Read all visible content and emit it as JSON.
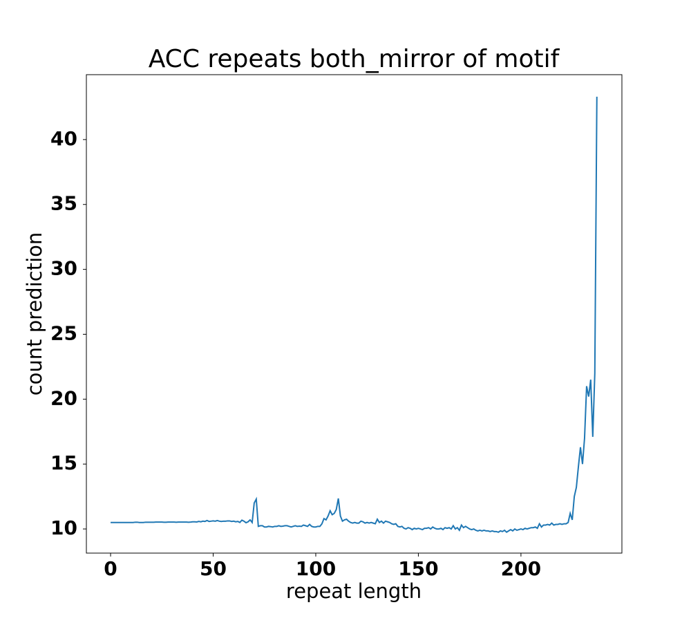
{
  "chart_data": {
    "type": "line",
    "title": "ACC repeats both_mirror of motif",
    "x_label": "repeat length",
    "y_label": "count prediction",
    "xlim": [
      -11.8,
      249.2
    ],
    "xticks": [
      0,
      50,
      100,
      150,
      200
    ],
    "ylim": [
      8.14,
      45.0
    ],
    "yticks": [
      10,
      15,
      20,
      25,
      30,
      35,
      40
    ],
    "series": [
      {
        "name": "count prediction",
        "color": "#1f77b4",
        "x": [
          0,
          1,
          2,
          3,
          4,
          5,
          6,
          7,
          8,
          9,
          10,
          11,
          12,
          13,
          14,
          15,
          16,
          17,
          18,
          19,
          20,
          21,
          22,
          23,
          24,
          25,
          26,
          27,
          28,
          29,
          30,
          31,
          32,
          33,
          34,
          35,
          36,
          37,
          38,
          39,
          40,
          41,
          42,
          43,
          44,
          45,
          46,
          47,
          48,
          49,
          50,
          51,
          52,
          53,
          54,
          55,
          56,
          57,
          58,
          59,
          60,
          61,
          62,
          63,
          64,
          65,
          66,
          67,
          68,
          69,
          70,
          71,
          72,
          73,
          74,
          75,
          76,
          77,
          78,
          79,
          80,
          81,
          82,
          83,
          84,
          85,
          86,
          87,
          88,
          89,
          90,
          91,
          92,
          93,
          94,
          95,
          96,
          97,
          98,
          99,
          100,
          101,
          102,
          103,
          104,
          105,
          106,
          107,
          108,
          109,
          110,
          111,
          112,
          113,
          114,
          115,
          116,
          117,
          118,
          119,
          120,
          121,
          122,
          123,
          124,
          125,
          126,
          127,
          128,
          129,
          130,
          131,
          132,
          133,
          134,
          135,
          136,
          137,
          138,
          139,
          140,
          141,
          142,
          143,
          144,
          145,
          146,
          147,
          148,
          149,
          150,
          151,
          152,
          153,
          154,
          155,
          156,
          157,
          158,
          159,
          160,
          161,
          162,
          163,
          164,
          165,
          166,
          167,
          168,
          169,
          170,
          171,
          172,
          173,
          174,
          175,
          176,
          177,
          178,
          179,
          180,
          181,
          182,
          183,
          184,
          185,
          186,
          187,
          188,
          189,
          190,
          191,
          192,
          193,
          194,
          195,
          196,
          197,
          198,
          199,
          200,
          201,
          202,
          203,
          204,
          205,
          206,
          207,
          208,
          209,
          210,
          211,
          212,
          213,
          214,
          215,
          216,
          217,
          218,
          219,
          220,
          221,
          222,
          223,
          224,
          225,
          226,
          227,
          228,
          229,
          230,
          231,
          232,
          233,
          234,
          235,
          236,
          237
        ],
        "values": [
          10.5,
          10.5,
          10.5,
          10.5,
          10.5,
          10.5,
          10.5,
          10.5,
          10.5,
          10.5,
          10.5,
          10.5,
          10.52,
          10.52,
          10.5,
          10.5,
          10.5,
          10.52,
          10.52,
          10.52,
          10.52,
          10.52,
          10.53,
          10.53,
          10.53,
          10.53,
          10.52,
          10.52,
          10.53,
          10.53,
          10.53,
          10.53,
          10.52,
          10.53,
          10.53,
          10.53,
          10.53,
          10.53,
          10.52,
          10.53,
          10.55,
          10.55,
          10.54,
          10.58,
          10.55,
          10.6,
          10.58,
          10.65,
          10.58,
          10.6,
          10.62,
          10.6,
          10.65,
          10.6,
          10.58,
          10.6,
          10.6,
          10.62,
          10.62,
          10.58,
          10.6,
          10.55,
          10.58,
          10.5,
          10.68,
          10.6,
          10.48,
          10.55,
          10.7,
          10.5,
          12.0,
          12.3,
          10.2,
          10.25,
          10.25,
          10.15,
          10.15,
          10.2,
          10.18,
          10.15,
          10.2,
          10.2,
          10.25,
          10.2,
          10.22,
          10.25,
          10.25,
          10.2,
          10.15,
          10.2,
          10.25,
          10.2,
          10.22,
          10.2,
          10.3,
          10.25,
          10.2,
          10.35,
          10.2,
          10.15,
          10.15,
          10.2,
          10.2,
          10.4,
          10.8,
          10.7,
          11.0,
          11.4,
          11.1,
          11.2,
          11.5,
          12.35,
          11.0,
          10.6,
          10.7,
          10.75,
          10.6,
          10.5,
          10.45,
          10.5,
          10.45,
          10.45,
          10.6,
          10.55,
          10.45,
          10.5,
          10.45,
          10.5,
          10.45,
          10.4,
          10.75,
          10.5,
          10.6,
          10.45,
          10.6,
          10.55,
          10.5,
          10.4,
          10.35,
          10.4,
          10.2,
          10.15,
          10.2,
          10.05,
          10.0,
          10.1,
          10.05,
          9.95,
          10.05,
          10.0,
          10.05,
          10.0,
          9.95,
          10.05,
          10.05,
          10.1,
          10.0,
          10.15,
          10.05,
          10.0,
          10.0,
          10.05,
          9.95,
          10.1,
          10.05,
          10.1,
          10.0,
          10.25,
          10.0,
          10.1,
          9.9,
          10.3,
          10.1,
          10.2,
          10.1,
          10.0,
          9.95,
          10.0,
          9.9,
          9.85,
          9.9,
          9.85,
          9.9,
          9.85,
          9.85,
          9.8,
          9.85,
          9.8,
          9.8,
          9.75,
          9.85,
          9.8,
          9.9,
          9.75,
          9.85,
          9.95,
          9.85,
          10.0,
          9.9,
          9.95,
          10.0,
          9.95,
          10.05,
          10.0,
          10.05,
          10.1,
          10.1,
          10.15,
          10.05,
          10.4,
          10.15,
          10.3,
          10.3,
          10.35,
          10.3,
          10.45,
          10.3,
          10.35,
          10.35,
          10.4,
          10.35,
          10.4,
          10.4,
          10.5,
          11.2,
          10.7,
          12.5,
          13.2,
          14.8,
          16.3,
          15.0,
          17.0,
          21.0,
          20.2,
          21.5,
          17.1,
          22.0,
          43.3
        ]
      }
    ]
  }
}
